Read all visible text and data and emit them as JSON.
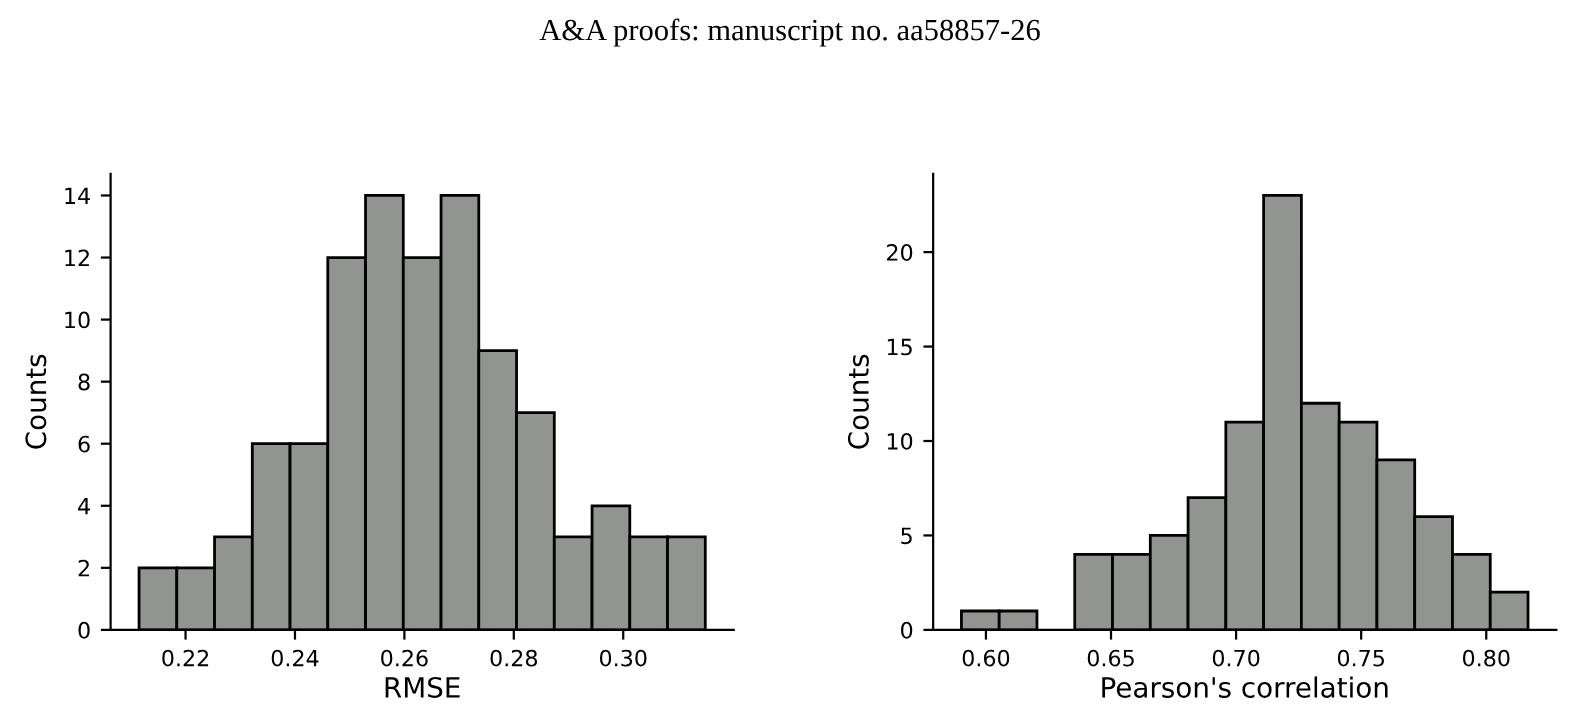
{
  "chart_data": [
    {
      "type": "histogram",
      "annotations": [
        "A&A proofs: manuscript no. aa58857-26"
      ],
      "xlabel": "RMSE",
      "ylabel": "Counts",
      "bins": [
        0.2115,
        0.2184,
        0.2253,
        0.2322,
        0.2391,
        0.246,
        0.2529,
        0.2598,
        0.2667,
        0.2736,
        0.2805,
        0.2874,
        0.2943,
        0.3012,
        0.3081,
        0.315
      ],
      "values": [
        2,
        2,
        3,
        6,
        6,
        12,
        14,
        12,
        14,
        9,
        7,
        3,
        4,
        3,
        3
      ],
      "color": "#929491",
      "xlim": [
        0.2063,
        0.3202
      ],
      "xticks": [
        0.22,
        0.24,
        0.26,
        0.28,
        {
          "value": 0.3,
          "label": "0.30"
        }
      ],
      "ylim": [
        0,
        14.7
      ],
      "yticks": [
        0,
        2,
        4,
        6,
        8,
        10,
        12,
        14
      ],
      "grid": false
    },
    {
      "type": "histogram",
      "xlabel": "Pearson's correlation",
      "ylabel": "Counts",
      "bins": [
        0.5902,
        0.6053,
        0.6204,
        0.6355,
        0.6506,
        0.6657,
        0.6808,
        0.6959,
        0.711,
        0.7261,
        0.7412,
        0.7563,
        0.7714,
        0.7865,
        0.8016,
        0.8167
      ],
      "values": [
        1,
        1,
        0,
        4,
        4,
        5,
        7,
        11,
        23,
        12,
        11,
        9,
        6,
        4,
        2
      ],
      "color": "#929491",
      "xlim": [
        0.5789,
        0.828
      ],
      "xticks": [
        {
          "value": 0.6,
          "label": "0.60"
        },
        0.65,
        {
          "value": 0.7,
          "label": "0.70"
        },
        0.75,
        {
          "value": 0.8,
          "label": "0.80"
        }
      ],
      "ylim": [
        0,
        24.15
      ],
      "yticks": [
        0,
        5,
        10,
        15,
        20
      ],
      "grid": false
    }
  ]
}
